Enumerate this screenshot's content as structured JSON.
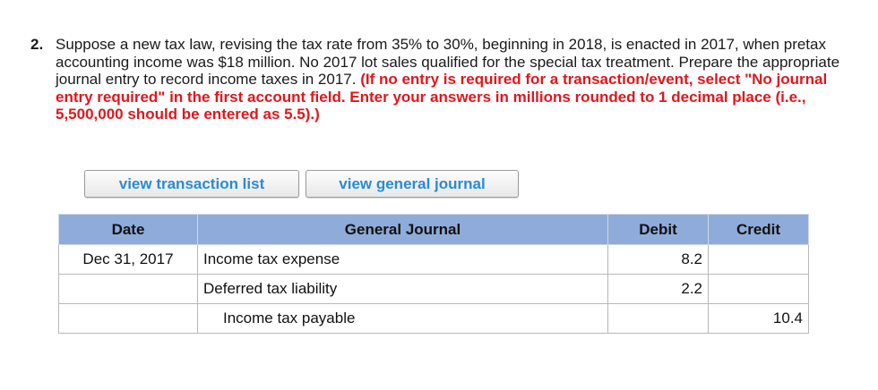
{
  "question": {
    "number": "2.",
    "body": "Suppose a new tax law, revising the tax rate from 35% to 30%, beginning in 2018, is enacted in 2017, when pretax accounting income was $18 million. No 2017 lot sales qualified for the special tax treatment. Prepare the appropriate journal entry to record income taxes in 2017.",
    "instructions": "(If no entry is required for a transaction/event, select \"No journal entry required\" in the first account field. Enter your answers in millions rounded to 1 decimal place (i.e., 5,500,000 should be entered as 5.5).)"
  },
  "buttons": {
    "transaction_list": "view transaction list",
    "general_journal": "view general journal"
  },
  "journal": {
    "headers": {
      "date": "Date",
      "account": "General Journal",
      "debit": "Debit",
      "credit": "Credit"
    },
    "rows": [
      {
        "date": "Dec 31, 2017",
        "account": "Income tax expense",
        "debit": "8.2",
        "credit": ""
      },
      {
        "date": "",
        "account": "Deferred tax liability",
        "debit": "2.2",
        "credit": ""
      },
      {
        "date": "",
        "account": "Income tax payable",
        "debit": "",
        "credit": "10.4"
      }
    ]
  }
}
